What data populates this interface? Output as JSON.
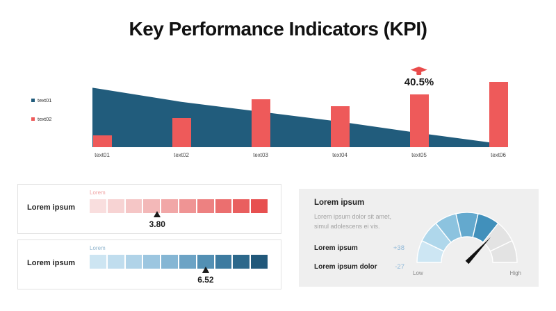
{
  "title": "Key Performance Indicators (KPI)",
  "legend": {
    "items": [
      {
        "label": "text01",
        "color": "#215C7C"
      },
      {
        "label": "text02",
        "color": "#EE5A5A"
      }
    ]
  },
  "chart_data": [
    {
      "type": "combo",
      "categories": [
        "text01",
        "text02",
        "text03",
        "text04",
        "text05",
        "text06"
      ],
      "series": [
        {
          "name": "text01",
          "type": "area",
          "color": "#215C7C",
          "values": [
            84,
            64,
            50,
            36,
            20,
            6
          ]
        },
        {
          "name": "text02",
          "type": "bar",
          "color": "#EE5A5A",
          "values": [
            17,
            41,
            68,
            58,
            75,
            92
          ]
        }
      ],
      "ylim": [
        0,
        100
      ],
      "grid": false,
      "legend_position": "left",
      "xlabel": "",
      "ylabel": "",
      "xlabel_color": "#4A4A4A",
      "annotation": {
        "label": "40.5%",
        "category": "text05",
        "category_index": 4,
        "icon": "graduation-cap-icon",
        "icon_color": "#E94B4B"
      }
    },
    {
      "type": "scale",
      "label": "Lorem ipsum",
      "caption": "Lorem",
      "caption_color": "#F0A3A3",
      "value": 3.8,
      "value_text": "3.80",
      "min": 0,
      "max": 10,
      "segments": 10,
      "segment_colors": [
        "#F9DEDE",
        "#F7D3D3",
        "#F5C6C6",
        "#F3B8B8",
        "#F1A7A7",
        "#EF9494",
        "#ED8181",
        "#EB6F6F",
        "#E95F5F",
        "#E75050"
      ]
    },
    {
      "type": "scale",
      "label": "Lorem ipsum",
      "caption": "Lorem",
      "caption_color": "#8FB4CD",
      "value": 6.52,
      "value_text": "6.52",
      "min": 0,
      "max": 10,
      "segments": 10,
      "segment_colors": [
        "#CDE5F2",
        "#C0DDEE",
        "#B0D3E8",
        "#9CC6E0",
        "#85B6D4",
        "#6CA3C5",
        "#5390B4",
        "#3D7BA0",
        "#2C688B",
        "#21587A"
      ]
    },
    {
      "type": "gauge",
      "segment_count": 7,
      "filled_count": 5,
      "segment_colors": [
        "#CDE6F3",
        "#AFD7EB",
        "#8CC3DF",
        "#64A9CE",
        "#4190BB"
      ],
      "empty_color": "#E3E3E3",
      "needle_fraction": 0.74,
      "needle_color": "#111111",
      "low_label": "Low",
      "high_label": "High",
      "label_color": "#8A8A8A"
    }
  ],
  "info_panel": {
    "heading": "Lorem ipsum",
    "paragraph": "Lorem ipsum dolor sit amet, simul adolescens ei vis.",
    "rows": [
      {
        "label": "Lorem ipsum",
        "value": "+38"
      },
      {
        "label": "Lorem ipsum dolor",
        "value": "-27"
      }
    ],
    "value_color": "#8FB8D8"
  }
}
